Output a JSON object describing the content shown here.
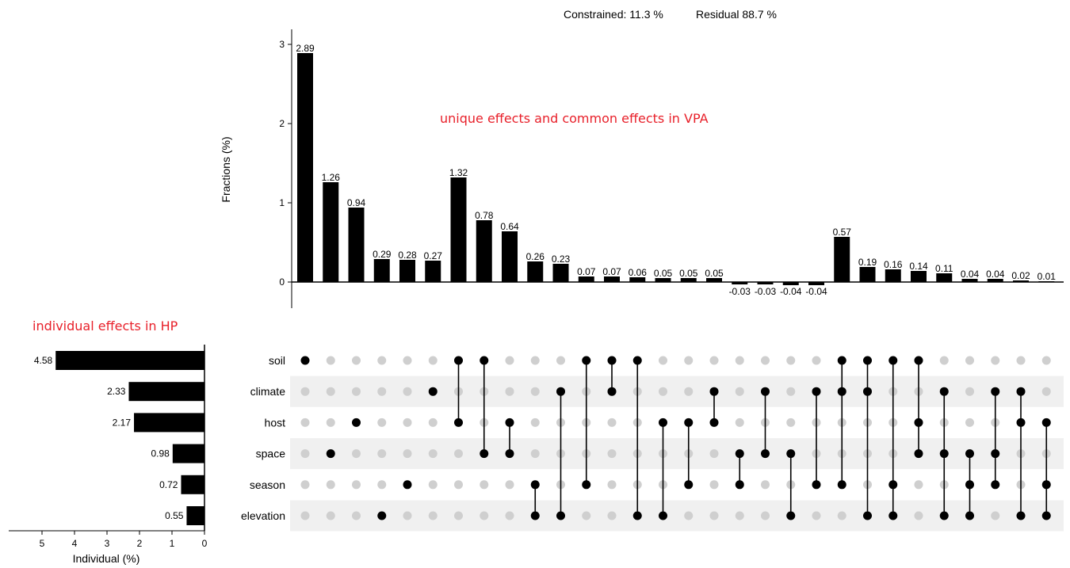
{
  "summary": {
    "constrained": "Constrained: 11.3 %",
    "residual": "Residual 88.7 %"
  },
  "annotations": {
    "vpa": "unique effects and common effects in VPA",
    "hp": "individual effects in HP"
  },
  "chart_data": [
    {
      "type": "bar",
      "ylabel": "Fractions (%)",
      "ylim": [
        -0.3,
        3.1
      ],
      "yticks": [
        0,
        1,
        2,
        3
      ],
      "values": [
        2.89,
        1.26,
        0.94,
        0.29,
        0.28,
        0.27,
        1.32,
        0.78,
        0.64,
        0.26,
        0.23,
        0.07,
        0.07,
        0.06,
        0.05,
        0.05,
        0.05,
        -0.03,
        -0.03,
        -0.04,
        -0.04,
        0.57,
        0.19,
        0.16,
        0.14,
        0.11,
        0.04,
        0.04,
        0.02,
        0.01
      ],
      "labels": [
        "2.89",
        "1.26",
        "0.94",
        "0.29",
        "0.28",
        "0.27",
        "1.32",
        "0.78",
        "0.64",
        "0.26",
        "0.23",
        "0.07",
        "0.07",
        "0.06",
        "0.05",
        "0.05",
        "0.05",
        "-0.03",
        "-0.03",
        "-0.04",
        "-0.04",
        "0.57",
        "0.19",
        "0.16",
        "0.14",
        "0.11",
        "0.04",
        "0.04",
        "0.02",
        "0.01"
      ],
      "color": "#000000"
    },
    {
      "type": "table",
      "rows": [
        "soil",
        "climate",
        "host",
        "space",
        "season",
        "elevation"
      ],
      "sets": [
        [
          0
        ],
        [
          3
        ],
        [
          2
        ],
        [
          5
        ],
        [
          4
        ],
        [
          1
        ],
        [
          0,
          2
        ],
        [
          0,
          3
        ],
        [
          2,
          3
        ],
        [
          4,
          5
        ],
        [
          1,
          5
        ],
        [
          0,
          4
        ],
        [
          0,
          1
        ],
        [
          0,
          5
        ],
        [
          2,
          5
        ],
        [
          2,
          4
        ],
        [
          1,
          2
        ],
        [
          3,
          4
        ],
        [
          1,
          3
        ],
        [
          3,
          5
        ],
        [
          1,
          4
        ],
        [
          0,
          1,
          4
        ],
        [
          0,
          1,
          5
        ],
        [
          0,
          4,
          5
        ],
        [
          0,
          2,
          3
        ],
        [
          1,
          3,
          5
        ],
        [
          3,
          4,
          5
        ],
        [
          1,
          3,
          4
        ],
        [
          1,
          2,
          5
        ],
        [
          2,
          4,
          5
        ]
      ],
      "active_color": "#000000",
      "inactive_color": "#cfcfcf",
      "stripe_color": "#f0f0f0"
    },
    {
      "type": "bar",
      "orientation": "horizontal",
      "xlabel": "Individual (%)",
      "xlim": [
        0,
        5
      ],
      "xticks": [
        5,
        4,
        3,
        2,
        1,
        0
      ],
      "values": [
        4.58,
        2.33,
        2.17,
        0.98,
        0.72,
        0.55
      ],
      "labels": [
        "4.58",
        "2.33",
        "2.17",
        "0.98",
        "0.72",
        "0.55"
      ],
      "color": "#000000"
    }
  ]
}
